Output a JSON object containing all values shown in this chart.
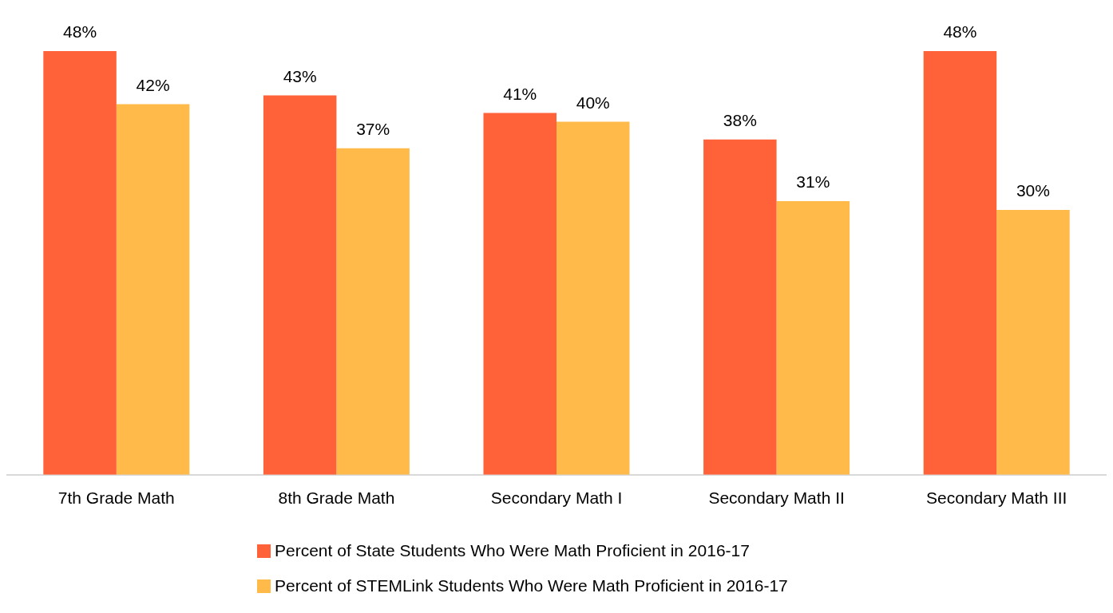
{
  "chart_data": {
    "type": "bar",
    "categories": [
      "7th Grade Math",
      "8th Grade Math",
      "Secondary Math I",
      "Secondary Math II",
      "Secondary Math III"
    ],
    "series": [
      {
        "name": "Percent of State Students Who Were Math Proficient in 2016-17",
        "color": "#ff6138",
        "values": [
          48,
          43,
          41,
          38,
          48
        ],
        "value_labels": [
          "48%",
          "43%",
          "41%",
          "38%",
          "48%"
        ]
      },
      {
        "name": "Percent of STEMLink Students Who Were Math Proficient in 2016-17",
        "color": "#ffba49",
        "values": [
          42,
          37,
          40,
          31,
          30
        ],
        "value_labels": [
          "42%",
          "37%",
          "40%",
          "31%",
          "30%"
        ]
      }
    ],
    "legend": "bottom",
    "tick_labels": "x"
  }
}
